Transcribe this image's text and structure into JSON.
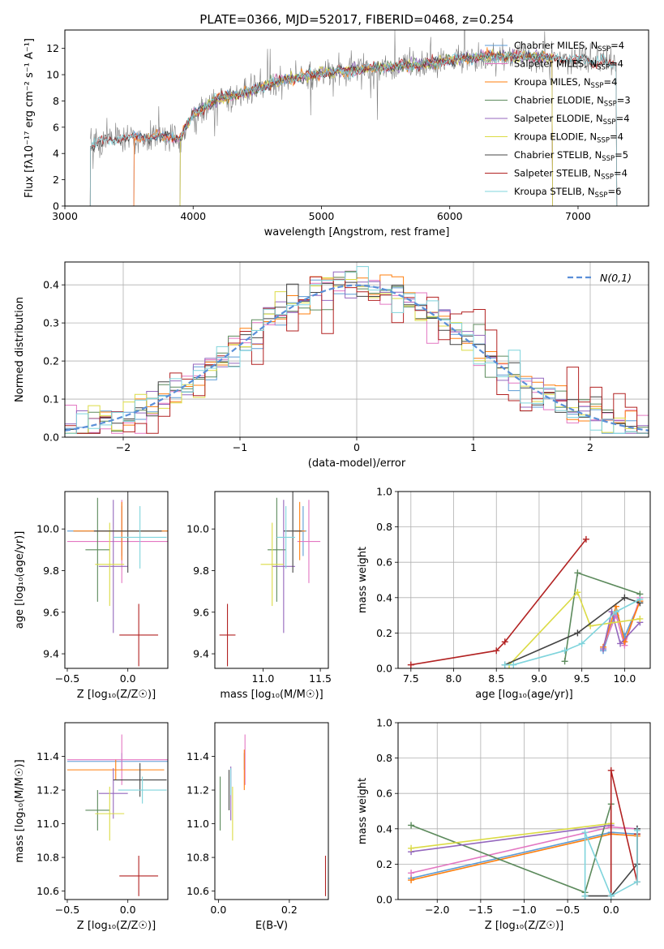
{
  "chart_data": [
    {
      "id": "spectrum",
      "type": "line",
      "title": "PLATE=0366, MJD=52017, FIBERID=0468, z=0.254",
      "xlabel": "wavelength [Angstrom, rest frame]",
      "ylabel": "Flux [fλ10⁻¹⁷ erg cm⁻² s⁻¹ A⁻¹]",
      "xlim": [
        3000,
        7550
      ],
      "ylim": [
        0,
        13.4
      ],
      "xticks": [
        3000,
        4000,
        5000,
        6000,
        7000
      ],
      "yticks": [
        0,
        2,
        4,
        6,
        8,
        10,
        12
      ],
      "legend_position": "top-right",
      "data_color": "#7f7f7f",
      "data_range": [
        3200,
        7300
      ],
      "continuum": {
        "x": [
          3200,
          3300,
          3500,
          3700,
          3900,
          4000,
          4200,
          4400,
          4600,
          4800,
          5000,
          5200,
          5500,
          5800,
          6000,
          6300,
          6600,
          7000,
          7300
        ],
        "y": [
          4.5,
          5.0,
          5.2,
          5.3,
          5.2,
          7.0,
          8.2,
          8.6,
          9.3,
          9.8,
          10.1,
          10.3,
          10.6,
          10.8,
          11.1,
          11.4,
          11.4,
          11.2,
          10.8
        ]
      },
      "series": [
        {
          "name": "Chabrier MILES, N$_{SSP}$=4",
          "color": "#5b9bd5",
          "start": 3540,
          "end": 6800
        },
        {
          "name": "Salpeter MILES, N$_{SSP}$=4",
          "color": "#e377c2",
          "start": 3540,
          "end": 6800
        },
        {
          "name": "Kroupa MILES, N$_{SSP}$=4",
          "color": "#ff7f0e",
          "start": 3540,
          "end": 6800
        },
        {
          "name": "Chabrier ELODIE, N$_{SSP}$=3",
          "color": "#5c8a5c",
          "start": 3900,
          "end": 6800
        },
        {
          "name": "Salpeter ELODIE, N$_{SSP}$=4",
          "color": "#9467bd",
          "start": 3900,
          "end": 6800
        },
        {
          "name": "Kroupa ELODIE, N$_{SSP}$=4",
          "color": "#dbdb45",
          "start": 3900,
          "end": 6800
        },
        {
          "name": "Chabrier STELIB, N$_{SSP}$=5",
          "color": "#444444",
          "start": 3200,
          "end": 7300
        },
        {
          "name": "Salpeter STELIB, N$_{SSP}$=4",
          "color": "#b22222",
          "start": 3200,
          "end": 7300
        },
        {
          "name": "Kroupa STELIB, N$_{SSP}$=6",
          "color": "#7fd4dc",
          "start": 3200,
          "end": 7300
        }
      ]
    },
    {
      "id": "residuals",
      "type": "line",
      "xlabel": "(data-model)/error",
      "ylabel": "Normed distribution",
      "xlim": [
        -2.5,
        2.5
      ],
      "ylim": [
        0,
        0.46
      ],
      "xticks": [
        -2,
        -1,
        0,
        1,
        2
      ],
      "yticks": [
        0.0,
        0.1,
        0.2,
        0.3,
        0.4
      ],
      "grid": true,
      "legend_position": "top-right",
      "gaussian": {
        "name": "N(0,1)",
        "color": "#5a8fd8"
      },
      "bin_width": 0.1,
      "series_colors": [
        "#5b9bd5",
        "#e377c2",
        "#ff7f0e",
        "#5c8a5c",
        "#9467bd",
        "#dbdb45",
        "#444444",
        "#b22222",
        "#7fd4dc"
      ]
    },
    {
      "id": "age-vs-Z",
      "type": "scatter",
      "xlabel": "Z [log₁₀(Z/Z☉)]",
      "ylabel": "age [log₁₀(age/yr)]",
      "xlim": [
        -0.52,
        0.33
      ],
      "ylim": [
        9.33,
        10.18
      ],
      "xticks": [
        -0.5,
        0.0
      ],
      "yticks": [
        9.4,
        9.6,
        9.8,
        10.0
      ],
      "points": [
        {
          "x": -0.05,
          "y": 9.99,
          "xerr": 0.45,
          "yerr": 0.12,
          "color": "#5b9bd5"
        },
        {
          "x": -0.05,
          "y": 9.94,
          "xerr": 0.45,
          "yerr": 0.2,
          "color": "#e377c2"
        },
        {
          "x": -0.05,
          "y": 9.99,
          "xerr": 0.4,
          "yerr": 0.14,
          "color": "#ff7f0e"
        },
        {
          "x": -0.25,
          "y": 9.9,
          "xerr": 0.1,
          "yerr": 0.25,
          "color": "#5c8a5c"
        },
        {
          "x": -0.12,
          "y": 9.82,
          "xerr": 0.12,
          "yerr": 0.32,
          "color": "#9467bd"
        },
        {
          "x": -0.15,
          "y": 9.83,
          "xerr": 0.12,
          "yerr": 0.2,
          "color": "#dbdb45"
        },
        {
          "x": -0.0,
          "y": 9.99,
          "xerr": 0.28,
          "yerr": 0.2,
          "color": "#444444"
        },
        {
          "x": 0.09,
          "y": 9.49,
          "xerr": 0.16,
          "yerr": 0.15,
          "color": "#b22222"
        },
        {
          "x": 0.1,
          "y": 9.96,
          "xerr": 0.22,
          "yerr": 0.15,
          "color": "#7fd4dc"
        }
      ]
    },
    {
      "id": "age-vs-mass",
      "type": "scatter",
      "xlabel": "mass [log₁₀(M/M☉)]",
      "ylabel": "",
      "xlim": [
        10.58,
        11.57
      ],
      "ylim": [
        9.33,
        10.18
      ],
      "xticks": [
        11.0,
        11.5
      ],
      "yticks": [
        9.4,
        9.6,
        9.8,
        10.0
      ],
      "points": [
        {
          "x": 11.35,
          "y": 9.99,
          "xerr": 0.03,
          "yerr": 0.12,
          "color": "#5b9bd5"
        },
        {
          "x": 11.4,
          "y": 9.94,
          "xerr": 0.1,
          "yerr": 0.2,
          "color": "#e377c2"
        },
        {
          "x": 11.32,
          "y": 9.99,
          "xerr": 0.05,
          "yerr": 0.14,
          "color": "#ff7f0e"
        },
        {
          "x": 11.12,
          "y": 9.9,
          "xerr": 0.08,
          "yerr": 0.25,
          "color": "#5c8a5c"
        },
        {
          "x": 11.18,
          "y": 9.82,
          "xerr": 0.1,
          "yerr": 0.32,
          "color": "#9467bd"
        },
        {
          "x": 11.08,
          "y": 9.83,
          "xerr": 0.1,
          "yerr": 0.2,
          "color": "#dbdb45"
        },
        {
          "x": 11.26,
          "y": 9.99,
          "xerr": 0.08,
          "yerr": 0.2,
          "color": "#444444"
        },
        {
          "x": 10.69,
          "y": 9.49,
          "xerr": 0.07,
          "yerr": 0.15,
          "color": "#b22222"
        },
        {
          "x": 11.2,
          "y": 9.96,
          "xerr": 0.08,
          "yerr": 0.15,
          "color": "#7fd4dc"
        }
      ]
    },
    {
      "id": "weight-vs-age",
      "type": "line",
      "xlabel": "age  [log₁₀(age/yr)]",
      "ylabel": "mass weight",
      "xlim": [
        7.35,
        10.3
      ],
      "ylim": [
        0,
        1.0
      ],
      "xticks": [
        7.5,
        8.0,
        8.5,
        9.0,
        9.5,
        10.0
      ],
      "yticks": [
        0.0,
        0.2,
        0.4,
        0.6,
        0.8,
        1.0
      ],
      "grid": true,
      "series": [
        {
          "color": "#5b9bd5",
          "x": [
            9.75,
            9.9,
            10.0,
            10.18
          ],
          "y": [
            0.1,
            0.32,
            0.18,
            0.38
          ]
        },
        {
          "color": "#e377c2",
          "x": [
            9.75,
            9.9,
            10.0,
            10.18
          ],
          "y": [
            0.12,
            0.3,
            0.13,
            0.4
          ]
        },
        {
          "color": "#ff7f0e",
          "x": [
            9.75,
            9.9,
            10.0,
            10.18
          ],
          "y": [
            0.12,
            0.35,
            0.15,
            0.38
          ]
        },
        {
          "color": "#5c8a5c",
          "x": [
            9.3,
            9.45,
            10.18
          ],
          "y": [
            0.04,
            0.54,
            0.42
          ]
        },
        {
          "color": "#9467bd",
          "x": [
            9.75,
            9.85,
            9.95,
            10.18
          ],
          "y": [
            0.11,
            0.32,
            0.14,
            0.26
          ]
        },
        {
          "color": "#dbdb45",
          "x": [
            8.65,
            9.45,
            9.6,
            10.18
          ],
          "y": [
            0.02,
            0.43,
            0.24,
            0.28
          ]
        },
        {
          "color": "#444444",
          "x": [
            8.6,
            9.45,
            10.0,
            10.18
          ],
          "y": [
            0.02,
            0.2,
            0.4,
            0.37
          ]
        },
        {
          "color": "#b22222",
          "x": [
            7.5,
            8.5,
            8.6,
            9.55
          ],
          "y": [
            0.02,
            0.1,
            0.15,
            0.73
          ]
        },
        {
          "color": "#7fd4dc",
          "x": [
            8.6,
            8.7,
            9.3,
            9.5,
            9.9,
            10.18
          ],
          "y": [
            0.02,
            0.02,
            0.1,
            0.14,
            0.32,
            0.39
          ]
        }
      ]
    },
    {
      "id": "mass-vs-Z",
      "type": "scatter",
      "xlabel": "Z [log₁₀(Z/Z☉)]",
      "ylabel": "mass [log₁₀(M/M☉)]",
      "xlim": [
        -0.52,
        0.33
      ],
      "ylim": [
        10.55,
        11.6
      ],
      "xticks": [
        -0.5,
        0.0
      ],
      "yticks": [
        10.6,
        10.8,
        11.0,
        11.2,
        11.4
      ],
      "points": [
        {
          "x": -0.05,
          "y": 11.37,
          "xerr": 0.45,
          "yerr": 0.05,
          "color": "#5b9bd5"
        },
        {
          "x": -0.05,
          "y": 11.38,
          "xerr": 0.45,
          "yerr": 0.15,
          "color": "#e377c2"
        },
        {
          "x": -0.1,
          "y": 11.32,
          "xerr": 0.4,
          "yerr": 0.06,
          "color": "#ff7f0e"
        },
        {
          "x": -0.25,
          "y": 11.08,
          "xerr": 0.1,
          "yerr": 0.12,
          "color": "#5c8a5c"
        },
        {
          "x": -0.12,
          "y": 11.18,
          "xerr": 0.12,
          "yerr": 0.15,
          "color": "#9467bd"
        },
        {
          "x": -0.15,
          "y": 11.06,
          "xerr": 0.12,
          "yerr": 0.16,
          "color": "#dbdb45"
        },
        {
          "x": 0.1,
          "y": 11.26,
          "xerr": 0.22,
          "yerr": 0.1,
          "color": "#444444"
        },
        {
          "x": 0.09,
          "y": 10.69,
          "xerr": 0.16,
          "yerr": 0.12,
          "color": "#b22222"
        },
        {
          "x": 0.12,
          "y": 11.2,
          "xerr": 0.2,
          "yerr": 0.08,
          "color": "#7fd4dc"
        }
      ]
    },
    {
      "id": "mass-vs-ebv",
      "type": "scatter",
      "xlabel": "E(B-V)",
      "ylabel": "",
      "xlim": [
        -0.01,
        0.31
      ],
      "ylim": [
        10.55,
        11.6
      ],
      "xticks": [
        0.0,
        0.2
      ],
      "yticks": [
        10.6,
        10.8,
        11.0,
        11.2,
        11.4
      ],
      "points": [
        {
          "x": 0.073,
          "y": 11.37,
          "xerr": 0.0,
          "yerr": 0.05,
          "color": "#5b9bd5"
        },
        {
          "x": 0.075,
          "y": 11.38,
          "xerr": 0.0,
          "yerr": 0.15,
          "color": "#e377c2"
        },
        {
          "x": 0.073,
          "y": 11.32,
          "xerr": 0.0,
          "yerr": 0.12,
          "color": "#ff7f0e"
        },
        {
          "x": 0.005,
          "y": 11.12,
          "xerr": 0.0,
          "yerr": 0.16,
          "color": "#5c8a5c"
        },
        {
          "x": 0.035,
          "y": 11.18,
          "xerr": 0.0,
          "yerr": 0.16,
          "color": "#9467bd"
        },
        {
          "x": 0.04,
          "y": 11.06,
          "xerr": 0.0,
          "yerr": 0.16,
          "color": "#dbdb45"
        },
        {
          "x": 0.03,
          "y": 11.2,
          "xerr": 0.0,
          "yerr": 0.12,
          "color": "#444444"
        },
        {
          "x": 0.302,
          "y": 10.69,
          "xerr": 0.0,
          "yerr": 0.12,
          "color": "#b22222"
        },
        {
          "x": 0.035,
          "y": 11.25,
          "xerr": 0.0,
          "yerr": 0.08,
          "color": "#7fd4dc"
        }
      ]
    },
    {
      "id": "weight-vs-Z",
      "type": "line",
      "xlabel": "Z [log₁₀(Z/Z☉)]",
      "ylabel": "mass weight",
      "xlim": [
        -2.45,
        0.45
      ],
      "ylim": [
        0,
        1.0
      ],
      "xticks": [
        -2.0,
        -1.5,
        -1.0,
        -0.5,
        0.0
      ],
      "yticks": [
        0.0,
        0.2,
        0.4,
        0.6,
        0.8,
        1.0
      ],
      "grid": true,
      "series": [
        {
          "color": "#5b9bd5",
          "x": [
            -2.3,
            0.0,
            0.3
          ],
          "y": [
            0.12,
            0.38,
            0.37
          ]
        },
        {
          "color": "#e377c2",
          "x": [
            -2.3,
            0.0,
            0.3
          ],
          "y": [
            0.15,
            0.41,
            0.4
          ]
        },
        {
          "color": "#ff7f0e",
          "x": [
            -2.3,
            0.0,
            0.3
          ],
          "y": [
            0.11,
            0.37,
            0.36
          ]
        },
        {
          "color": "#5c8a5c",
          "x": [
            -2.3,
            -0.3,
            0.0
          ],
          "y": [
            0.42,
            0.04,
            0.54
          ]
        },
        {
          "color": "#9467bd",
          "x": [
            -2.3,
            0.0
          ],
          "y": [
            0.27,
            0.42
          ]
        },
        {
          "color": "#dbdb45",
          "x": [
            -2.3,
            0.0
          ],
          "y": [
            0.29,
            0.43
          ]
        },
        {
          "color": "#444444",
          "x": [
            -0.3,
            0.0,
            0.3,
            0.3
          ],
          "y": [
            0.02,
            0.02,
            0.2,
            0.4
          ]
        },
        {
          "color": "#b22222",
          "x": [
            0.0,
            0.0,
            0.3,
            0.3
          ],
          "y": [
            0.02,
            0.73,
            0.1,
            0.37
          ]
        },
        {
          "color": "#7fd4dc",
          "x": [
            -0.3,
            -0.3,
            0.0,
            0.3,
            0.3
          ],
          "y": [
            0.02,
            0.38,
            0.02,
            0.1,
            0.39
          ]
        }
      ]
    }
  ]
}
